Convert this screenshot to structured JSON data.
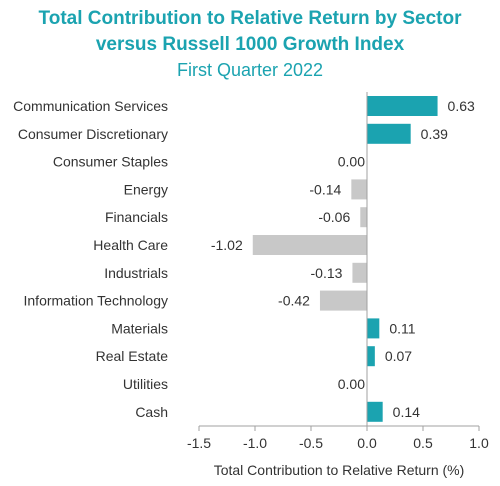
{
  "header": {
    "title_line1": "Total Contribution to Relative Return by Sector",
    "title_line2": "versus Russell 1000 Growth Index",
    "subtitle": "First Quarter 2022"
  },
  "chart_data": {
    "type": "bar",
    "orientation": "horizontal",
    "title": "Total Contribution to Relative Return by Sector versus Russell 1000 Growth Index",
    "subtitle": "First Quarter 2022",
    "xlabel": "Total Contribution to Relative Return (%)",
    "ylabel": "",
    "xlim": [
      -1.5,
      1.0
    ],
    "xticks": [
      -1.5,
      -1.0,
      -0.5,
      0.0,
      0.5,
      1.0
    ],
    "xtick_labels": [
      "-1.5",
      "-1.0",
      "-0.5",
      "0.0",
      "0.5",
      "1.0"
    ],
    "grid": false,
    "categories": [
      "Communication Services",
      "Consumer Discretionary",
      "Consumer Staples",
      "Energy",
      "Financials",
      "Health Care",
      "Industrials",
      "Information Technology",
      "Materials",
      "Real Estate",
      "Utilities",
      "Cash"
    ],
    "values": [
      0.63,
      0.39,
      0.0,
      -0.14,
      -0.06,
      -1.02,
      -0.13,
      -0.42,
      0.11,
      0.07,
      0.0,
      0.14
    ],
    "value_labels": [
      "0.63",
      "0.39",
      "0.00",
      "-0.14",
      "-0.06",
      "-1.02",
      "-0.13",
      "-0.42",
      "0.11",
      "0.07",
      "0.00",
      "0.14"
    ],
    "colors": {
      "positive": "#1ba3b0",
      "negative": "#c8c8c8",
      "title": "#1ba3b0",
      "axis": "#a0a0a0"
    }
  }
}
